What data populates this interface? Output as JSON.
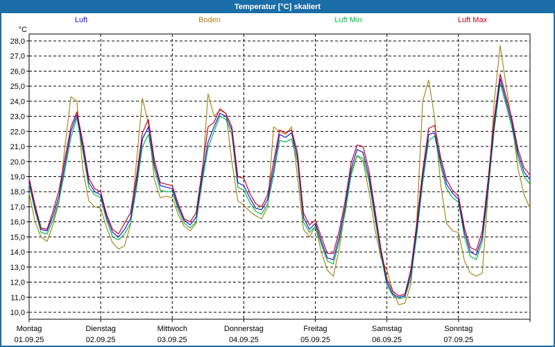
{
  "window": {
    "title": "Temperatur [°C] skaliert"
  },
  "colors": {
    "titlebar": "#1a6da6",
    "window_border": "#1a6da6",
    "plot_border": "#000000",
    "grid": "#000000",
    "background": "#ffffff"
  },
  "legend": [
    {
      "label": "Luft",
      "color": "#1616d9"
    },
    {
      "label": "Boden",
      "color": "#a8861f"
    },
    {
      "label": "Luft Min",
      "color": "#00b841"
    },
    {
      "label": "Luft Max",
      "color": "#c00021"
    }
  ],
  "chart_data": {
    "type": "line",
    "title": "Temperatur [°C] skaliert",
    "ylabel": "°C",
    "xlabel": "",
    "ylim": [
      10,
      28
    ],
    "ytick_step": 1.0,
    "grid": "dashed, 1 °C horizontal steps and vertical lines at day boundaries",
    "legend_position": "top row, outside plot",
    "ytick_labels": [
      "28,0",
      "27,0",
      "26,0",
      "25,0",
      "24,0",
      "23,0",
      "22,0",
      "21,0",
      "20,0",
      "19,0",
      "18,0",
      "17,0",
      "16,0",
      "15,0",
      "14,0",
      "13,0",
      "12,0",
      "11,0",
      "10,0"
    ],
    "x_unit": "hours since Monday 00:00",
    "x_range_hours": [
      0,
      168
    ],
    "sample_interval_hours": 2,
    "days": [
      {
        "name": "Montag",
        "date": "01.09.25"
      },
      {
        "name": "Dienstag",
        "date": "02.09.25"
      },
      {
        "name": "Mittwoch",
        "date": "03.09.25"
      },
      {
        "name": "Donnerstag",
        "date": "04.09.25"
      },
      {
        "name": "Freitag",
        "date": "05.09.25"
      },
      {
        "name": "Samstag",
        "date": "06.09.25"
      },
      {
        "name": "Sonntag",
        "date": "07.09.25"
      }
    ],
    "series": [
      {
        "name": "Boden",
        "color": "#a8861f",
        "values": [
          17.9,
          16.0,
          15.0,
          14.7,
          15.8,
          17.3,
          21.0,
          24.3,
          24.0,
          19.5,
          17.4,
          17.0,
          16.9,
          15.6,
          14.6,
          14.2,
          14.4,
          15.8,
          20.0,
          24.2,
          22.5,
          18.8,
          17.6,
          17.7,
          17.6,
          16.5,
          15.7,
          15.4,
          15.9,
          18.8,
          24.5,
          23.0,
          23.4,
          23.2,
          20.0,
          17.4,
          17.1,
          16.7,
          16.4,
          16.2,
          17.0,
          22.3,
          22.0,
          21.8,
          22.3,
          19.0,
          15.5,
          15.0,
          15.7,
          14.0,
          12.8,
          12.4,
          14.2,
          16.8,
          19.3,
          20.4,
          20.0,
          18.0,
          15.5,
          13.6,
          12.8,
          11.4,
          10.5,
          10.6,
          11.8,
          16.0,
          24.0,
          25.4,
          22.9,
          18.5,
          15.9,
          15.4,
          15.3,
          13.4,
          12.6,
          12.4,
          12.6,
          18.0,
          24.0,
          27.7,
          25.0,
          22.5,
          19.5,
          17.8,
          16.9
        ]
      },
      {
        "name": "Luft Min",
        "color": "#00b841",
        "values": [
          18.5,
          16.7,
          15.3,
          15.2,
          16.1,
          17.4,
          19.4,
          21.6,
          22.9,
          20.7,
          18.3,
          17.8,
          17.6,
          16.1,
          15.0,
          14.8,
          15.2,
          15.9,
          18.2,
          21.0,
          21.8,
          19.5,
          18.1,
          18.0,
          18.0,
          16.8,
          15.9,
          15.6,
          16.0,
          18.6,
          20.9,
          22.0,
          23.0,
          22.8,
          21.8,
          18.3,
          18.1,
          17.3,
          16.7,
          16.5,
          17.2,
          19.1,
          21.4,
          21.3,
          21.5,
          20.0,
          16.0,
          15.3,
          15.7,
          14.5,
          13.4,
          13.2,
          14.7,
          16.6,
          19.1,
          20.4,
          20.2,
          18.7,
          16.2,
          13.8,
          11.8,
          11.1,
          10.9,
          11.0,
          12.2,
          15.1,
          18.6,
          21.4,
          21.7,
          19.7,
          18.2,
          17.6,
          17.3,
          15.0,
          13.7,
          13.5,
          14.7,
          18.1,
          22.1,
          25.2,
          23.7,
          22.2,
          20.2,
          19.0,
          18.5
        ]
      },
      {
        "name": "Luft",
        "color": "#1616d9",
        "values": [
          18.7,
          16.9,
          15.5,
          15.4,
          16.4,
          17.7,
          19.8,
          22.0,
          23.1,
          21.0,
          18.6,
          18.0,
          17.8,
          16.3,
          15.3,
          15.0,
          15.5,
          16.2,
          18.6,
          21.5,
          22.3,
          19.8,
          18.4,
          18.3,
          18.2,
          17.0,
          16.1,
          15.8,
          16.3,
          19.0,
          21.3,
          22.3,
          23.2,
          23.0,
          22.1,
          18.6,
          18.4,
          17.6,
          16.9,
          16.8,
          17.5,
          19.5,
          21.8,
          21.6,
          21.9,
          20.3,
          16.3,
          15.5,
          15.9,
          14.7,
          13.6,
          13.5,
          15.0,
          17.0,
          19.5,
          20.8,
          20.6,
          19.0,
          16.5,
          14.0,
          12.0,
          11.2,
          11.0,
          11.1,
          12.5,
          15.5,
          19.0,
          21.8,
          21.9,
          20.0,
          18.5,
          17.9,
          17.5,
          15.3,
          14.0,
          13.8,
          15.0,
          18.5,
          22.5,
          25.5,
          24.0,
          22.5,
          20.5,
          19.3,
          18.8
        ]
      },
      {
        "name": "Luft Max",
        "color": "#c00021",
        "values": [
          18.9,
          17.1,
          15.6,
          15.5,
          16.7,
          18.1,
          20.2,
          22.3,
          23.3,
          21.3,
          18.9,
          18.2,
          18.0,
          16.5,
          15.5,
          15.2,
          15.9,
          16.6,
          19.0,
          21.9,
          22.8,
          20.1,
          18.6,
          18.5,
          18.4,
          17.2,
          16.2,
          16.0,
          16.6,
          19.4,
          22.3,
          22.6,
          23.5,
          23.2,
          22.3,
          19.0,
          18.9,
          17.9,
          17.2,
          17.0,
          17.8,
          20.0,
          22.1,
          21.9,
          22.1,
          20.6,
          16.6,
          15.8,
          16.1,
          15.0,
          13.9,
          13.9,
          15.4,
          17.4,
          19.9,
          21.1,
          21.0,
          19.4,
          16.8,
          14.2,
          12.2,
          11.4,
          11.1,
          11.2,
          12.8,
          15.9,
          19.4,
          22.2,
          22.4,
          20.3,
          18.8,
          18.1,
          17.7,
          15.6,
          14.3,
          14.1,
          15.4,
          18.9,
          22.9,
          25.8,
          24.3,
          22.8,
          20.8,
          19.6,
          19.1
        ]
      }
    ]
  }
}
